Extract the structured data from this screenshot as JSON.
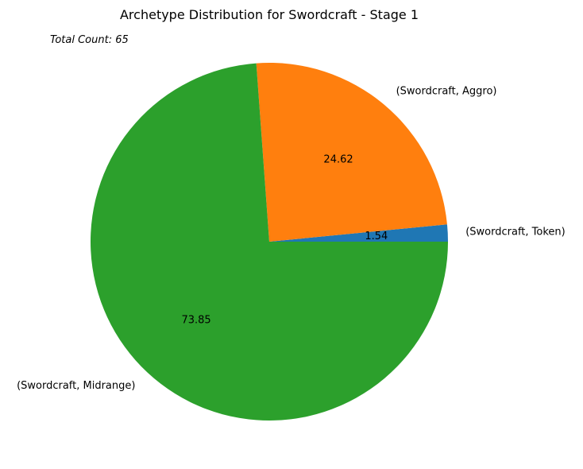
{
  "chart_data": {
    "type": "pie",
    "title": "Archetype Distribution for Swordcraft - Stage 1",
    "annotation": "Total Count: 65",
    "start_angle_deg": 0,
    "direction": "counterclockwise",
    "slices": [
      {
        "label": "(Swordcraft, Token)",
        "value": 1.54,
        "display": "1.54",
        "color": "#1f77b4"
      },
      {
        "label": "(Swordcraft, Aggro)",
        "value": 24.62,
        "display": "24.62",
        "color": "#ff7f0e"
      },
      {
        "label": "(Swordcraft, Midrange)",
        "value": 73.85,
        "display": "73.85",
        "color": "#2ca02c"
      }
    ]
  }
}
